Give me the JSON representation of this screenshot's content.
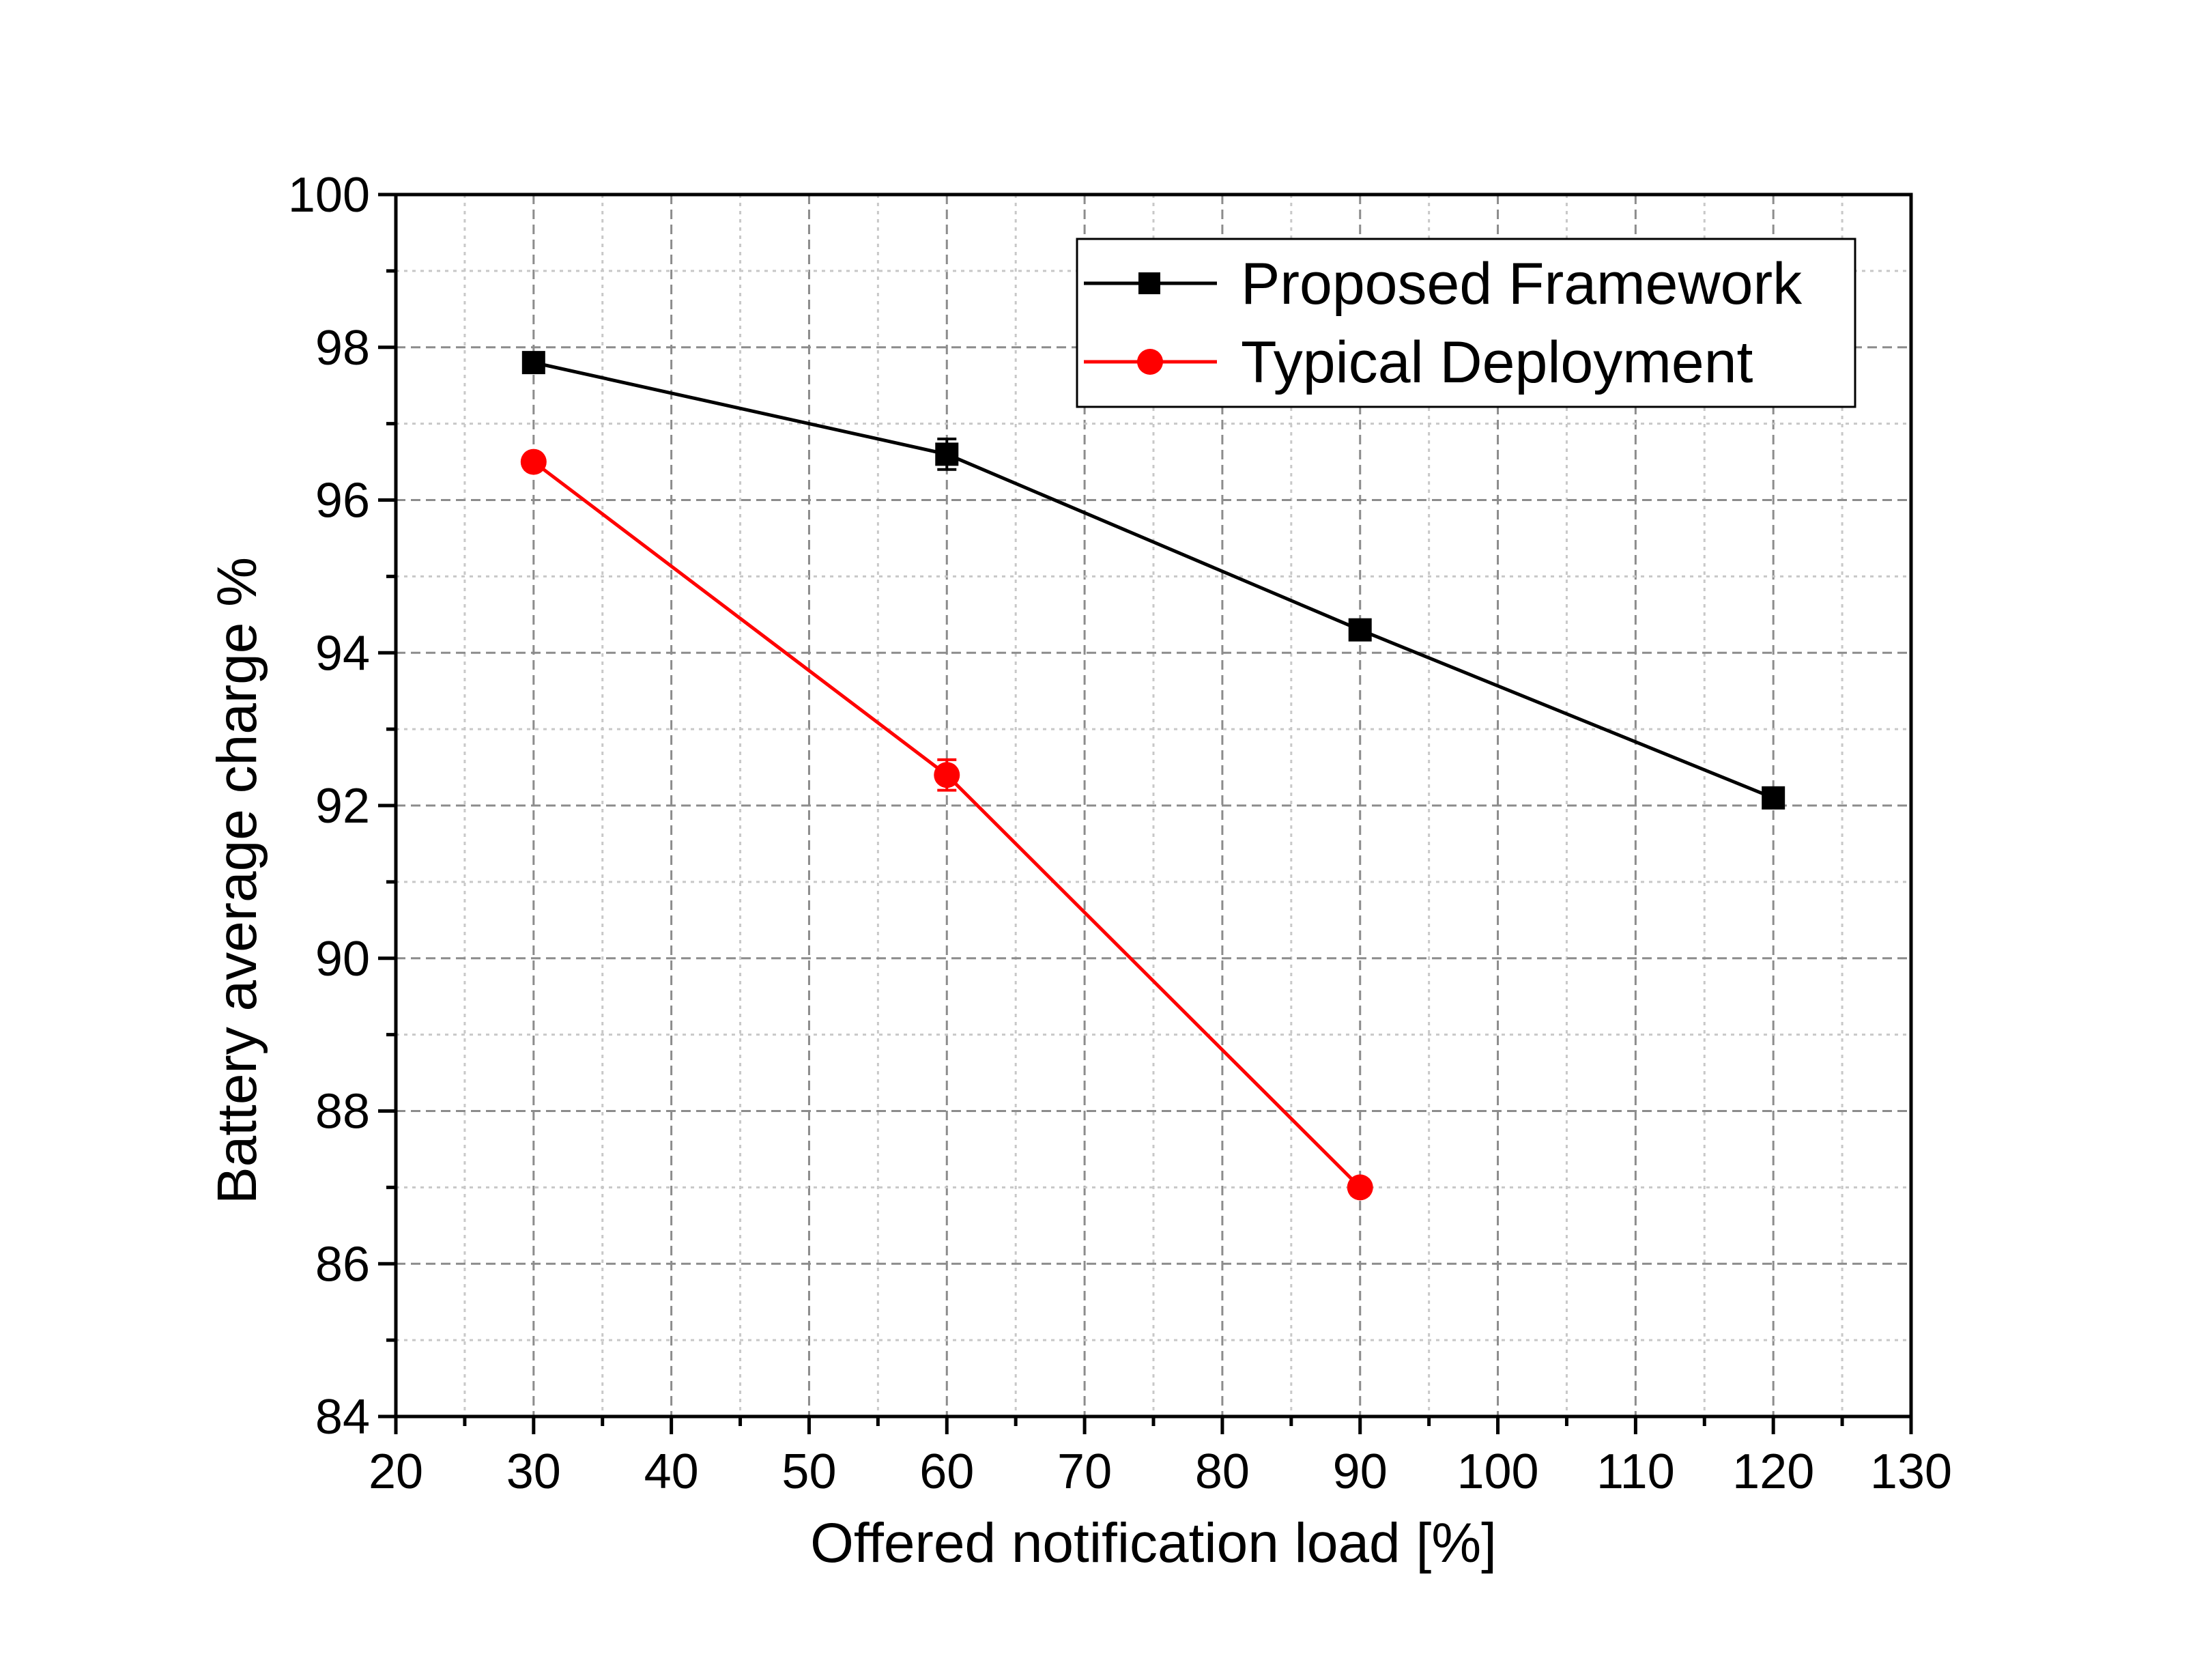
{
  "chart_data": {
    "type": "line",
    "title": "",
    "xlabel": "Offered notification load [%]",
    "ylabel": "Battery average charge %",
    "xlim": [
      20,
      130
    ],
    "ylim": [
      84,
      100
    ],
    "xticks": [
      20,
      30,
      40,
      50,
      60,
      70,
      80,
      90,
      100,
      110,
      120,
      130
    ],
    "yticks": [
      84,
      86,
      88,
      90,
      92,
      94,
      96,
      98,
      100
    ],
    "grid": true,
    "legend_position": "top-right",
    "series": [
      {
        "name": "Proposed Framework",
        "color": "#000000",
        "marker": "square",
        "x": [
          30,
          60,
          90,
          120
        ],
        "y": [
          97.8,
          96.6,
          94.3,
          92.1
        ],
        "error": [
          0.1,
          0.2,
          0.1,
          0.1
        ]
      },
      {
        "name": "Typical Deployment",
        "color": "#ff0000",
        "marker": "circle",
        "x": [
          30,
          60,
          90
        ],
        "y": [
          96.5,
          92.4,
          87.0
        ],
        "error": [
          0.1,
          0.2,
          0.1
        ]
      }
    ]
  }
}
